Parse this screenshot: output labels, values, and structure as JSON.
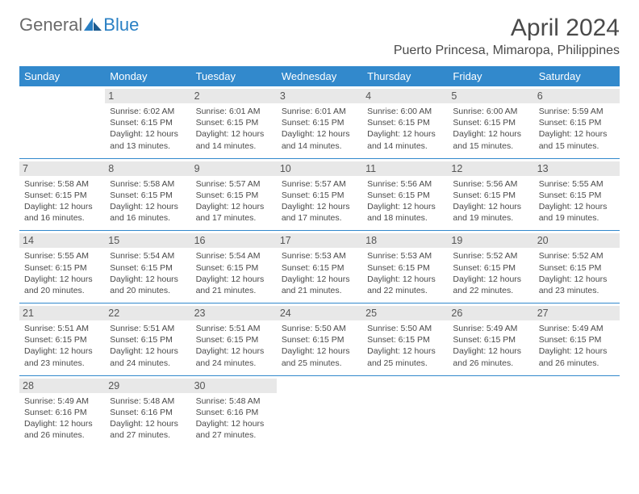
{
  "logo": {
    "part1": "General",
    "part2": "Blue"
  },
  "title": "April 2024",
  "subtitle": "Puerto Princesa, Mimaropa, Philippines",
  "day_headers": [
    "Sunday",
    "Monday",
    "Tuesday",
    "Wednesday",
    "Thursday",
    "Friday",
    "Saturday"
  ],
  "colors": {
    "header_bg": "#3289cc",
    "header_text": "#ffffff",
    "daynum_bg": "#e8e8e8",
    "text": "#4a4a4a",
    "row_border": "#3289cc",
    "logo_blue": "#2a80c4"
  },
  "typography": {
    "title_fontsize": 30,
    "subtitle_fontsize": 16,
    "header_fontsize": 13,
    "daynum_fontsize": 12.5,
    "info_fontsize": 10.5
  },
  "weeks": [
    [
      {
        "day": "",
        "sunrise": "",
        "sunset": "",
        "daylight": ""
      },
      {
        "day": "1",
        "sunrise": "Sunrise: 6:02 AM",
        "sunset": "Sunset: 6:15 PM",
        "daylight": "Daylight: 12 hours and 13 minutes."
      },
      {
        "day": "2",
        "sunrise": "Sunrise: 6:01 AM",
        "sunset": "Sunset: 6:15 PM",
        "daylight": "Daylight: 12 hours and 14 minutes."
      },
      {
        "day": "3",
        "sunrise": "Sunrise: 6:01 AM",
        "sunset": "Sunset: 6:15 PM",
        "daylight": "Daylight: 12 hours and 14 minutes."
      },
      {
        "day": "4",
        "sunrise": "Sunrise: 6:00 AM",
        "sunset": "Sunset: 6:15 PM",
        "daylight": "Daylight: 12 hours and 14 minutes."
      },
      {
        "day": "5",
        "sunrise": "Sunrise: 6:00 AM",
        "sunset": "Sunset: 6:15 PM",
        "daylight": "Daylight: 12 hours and 15 minutes."
      },
      {
        "day": "6",
        "sunrise": "Sunrise: 5:59 AM",
        "sunset": "Sunset: 6:15 PM",
        "daylight": "Daylight: 12 hours and 15 minutes."
      }
    ],
    [
      {
        "day": "7",
        "sunrise": "Sunrise: 5:58 AM",
        "sunset": "Sunset: 6:15 PM",
        "daylight": "Daylight: 12 hours and 16 minutes."
      },
      {
        "day": "8",
        "sunrise": "Sunrise: 5:58 AM",
        "sunset": "Sunset: 6:15 PM",
        "daylight": "Daylight: 12 hours and 16 minutes."
      },
      {
        "day": "9",
        "sunrise": "Sunrise: 5:57 AM",
        "sunset": "Sunset: 6:15 PM",
        "daylight": "Daylight: 12 hours and 17 minutes."
      },
      {
        "day": "10",
        "sunrise": "Sunrise: 5:57 AM",
        "sunset": "Sunset: 6:15 PM",
        "daylight": "Daylight: 12 hours and 17 minutes."
      },
      {
        "day": "11",
        "sunrise": "Sunrise: 5:56 AM",
        "sunset": "Sunset: 6:15 PM",
        "daylight": "Daylight: 12 hours and 18 minutes."
      },
      {
        "day": "12",
        "sunrise": "Sunrise: 5:56 AM",
        "sunset": "Sunset: 6:15 PM",
        "daylight": "Daylight: 12 hours and 19 minutes."
      },
      {
        "day": "13",
        "sunrise": "Sunrise: 5:55 AM",
        "sunset": "Sunset: 6:15 PM",
        "daylight": "Daylight: 12 hours and 19 minutes."
      }
    ],
    [
      {
        "day": "14",
        "sunrise": "Sunrise: 5:55 AM",
        "sunset": "Sunset: 6:15 PM",
        "daylight": "Daylight: 12 hours and 20 minutes."
      },
      {
        "day": "15",
        "sunrise": "Sunrise: 5:54 AM",
        "sunset": "Sunset: 6:15 PM",
        "daylight": "Daylight: 12 hours and 20 minutes."
      },
      {
        "day": "16",
        "sunrise": "Sunrise: 5:54 AM",
        "sunset": "Sunset: 6:15 PM",
        "daylight": "Daylight: 12 hours and 21 minutes."
      },
      {
        "day": "17",
        "sunrise": "Sunrise: 5:53 AM",
        "sunset": "Sunset: 6:15 PM",
        "daylight": "Daylight: 12 hours and 21 minutes."
      },
      {
        "day": "18",
        "sunrise": "Sunrise: 5:53 AM",
        "sunset": "Sunset: 6:15 PM",
        "daylight": "Daylight: 12 hours and 22 minutes."
      },
      {
        "day": "19",
        "sunrise": "Sunrise: 5:52 AM",
        "sunset": "Sunset: 6:15 PM",
        "daylight": "Daylight: 12 hours and 22 minutes."
      },
      {
        "day": "20",
        "sunrise": "Sunrise: 5:52 AM",
        "sunset": "Sunset: 6:15 PM",
        "daylight": "Daylight: 12 hours and 23 minutes."
      }
    ],
    [
      {
        "day": "21",
        "sunrise": "Sunrise: 5:51 AM",
        "sunset": "Sunset: 6:15 PM",
        "daylight": "Daylight: 12 hours and 23 minutes."
      },
      {
        "day": "22",
        "sunrise": "Sunrise: 5:51 AM",
        "sunset": "Sunset: 6:15 PM",
        "daylight": "Daylight: 12 hours and 24 minutes."
      },
      {
        "day": "23",
        "sunrise": "Sunrise: 5:51 AM",
        "sunset": "Sunset: 6:15 PM",
        "daylight": "Daylight: 12 hours and 24 minutes."
      },
      {
        "day": "24",
        "sunrise": "Sunrise: 5:50 AM",
        "sunset": "Sunset: 6:15 PM",
        "daylight": "Daylight: 12 hours and 25 minutes."
      },
      {
        "day": "25",
        "sunrise": "Sunrise: 5:50 AM",
        "sunset": "Sunset: 6:15 PM",
        "daylight": "Daylight: 12 hours and 25 minutes."
      },
      {
        "day": "26",
        "sunrise": "Sunrise: 5:49 AM",
        "sunset": "Sunset: 6:15 PM",
        "daylight": "Daylight: 12 hours and 26 minutes."
      },
      {
        "day": "27",
        "sunrise": "Sunrise: 5:49 AM",
        "sunset": "Sunset: 6:15 PM",
        "daylight": "Daylight: 12 hours and 26 minutes."
      }
    ],
    [
      {
        "day": "28",
        "sunrise": "Sunrise: 5:49 AM",
        "sunset": "Sunset: 6:16 PM",
        "daylight": "Daylight: 12 hours and 26 minutes."
      },
      {
        "day": "29",
        "sunrise": "Sunrise: 5:48 AM",
        "sunset": "Sunset: 6:16 PM",
        "daylight": "Daylight: 12 hours and 27 minutes."
      },
      {
        "day": "30",
        "sunrise": "Sunrise: 5:48 AM",
        "sunset": "Sunset: 6:16 PM",
        "daylight": "Daylight: 12 hours and 27 minutes."
      },
      {
        "day": "",
        "sunrise": "",
        "sunset": "",
        "daylight": ""
      },
      {
        "day": "",
        "sunrise": "",
        "sunset": "",
        "daylight": ""
      },
      {
        "day": "",
        "sunrise": "",
        "sunset": "",
        "daylight": ""
      },
      {
        "day": "",
        "sunrise": "",
        "sunset": "",
        "daylight": ""
      }
    ]
  ]
}
